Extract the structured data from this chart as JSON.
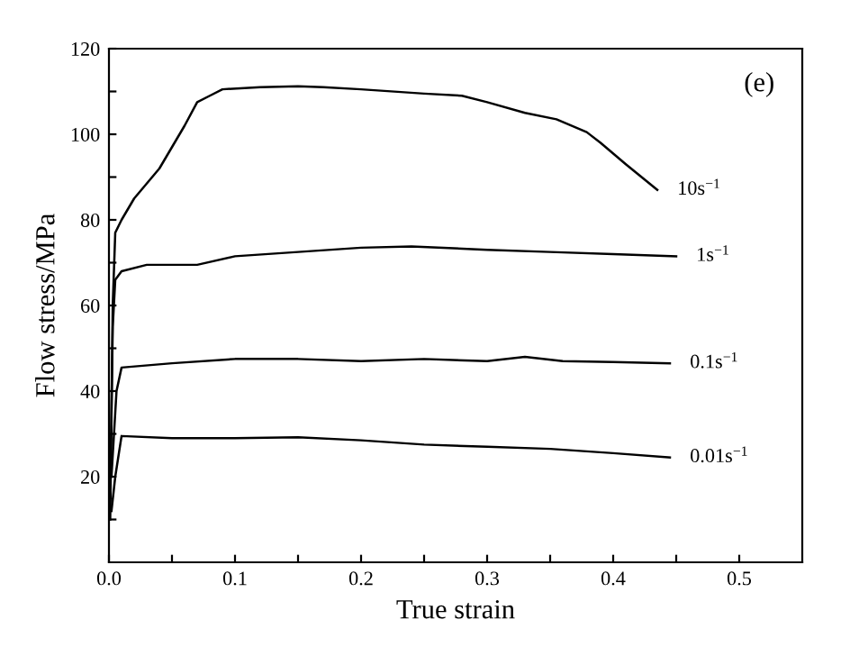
{
  "chart_data": {
    "type": "line",
    "xlabel": "True strain",
    "ylabel": "Flow stress/MPa",
    "annotations": [
      "(e)"
    ],
    "xlim": [
      0,
      0.55
    ],
    "ylim": [
      0,
      120
    ],
    "xticks": [
      {
        "value": 0,
        "label": "0.0"
      },
      {
        "value": 0.05,
        "label": null
      },
      0.1,
      {
        "value": 0.15,
        "label": null
      },
      0.2,
      {
        "value": 0.25,
        "label": null
      },
      0.3,
      {
        "value": 0.35,
        "label": null
      },
      0.4,
      {
        "value": 0.45,
        "label": null
      },
      0.5
    ],
    "yticks": [
      {
        "value": 10,
        "label": null
      },
      20,
      {
        "value": 30,
        "label": null
      },
      40,
      {
        "value": 50,
        "label": null
      },
      60,
      {
        "value": 70,
        "label": null
      },
      80,
      {
        "value": 90,
        "label": null
      },
      100,
      {
        "value": 110,
        "label": null
      },
      120
    ],
    "grid": false,
    "legend": false,
    "marker": "none",
    "line_style": "solid",
    "series": [
      {
        "name": "10s$^{−1}$",
        "color": "#000000",
        "x": [
          0.001,
          0.003,
          0.005,
          0.01,
          0.02,
          0.04,
          0.06,
          0.07,
          0.08,
          0.09,
          0.12,
          0.15,
          0.17,
          0.2,
          0.25,
          0.28,
          0.3,
          0.33,
          0.355,
          0.379,
          0.39,
          0.41,
          0.435
        ],
        "values": [
          10,
          60,
          77,
          80,
          85,
          92,
          102,
          107.5,
          109,
          110.5,
          111,
          111.2,
          111,
          110.5,
          109.5,
          109,
          107.5,
          105,
          103.5,
          100.5,
          98,
          93,
          87
        ]
      },
      {
        "name": "1s$^{−1}$",
        "color": "#000000",
        "x": [
          0.001,
          0.003,
          0.005,
          0.01,
          0.03,
          0.07,
          0.1,
          0.15,
          0.2,
          0.24,
          0.3,
          0.35,
          0.4,
          0.45
        ],
        "values": [
          15,
          55,
          66,
          68,
          69.5,
          69.5,
          71.5,
          72.5,
          73.5,
          73.8,
          73,
          72.5,
          72,
          71.5
        ]
      },
      {
        "name": "0.1s$^{−1}$",
        "color": "#000000",
        "x": [
          0.002,
          0.006,
          0.01,
          0.05,
          0.1,
          0.15,
          0.2,
          0.25,
          0.3,
          0.33,
          0.36,
          0.4,
          0.445
        ],
        "values": [
          20,
          40,
          45.5,
          46.5,
          47.5,
          47.5,
          47,
          47.5,
          47,
          48,
          47,
          46.8,
          46.5
        ]
      },
      {
        "name": "0.01s$^{−1}$",
        "color": "#000000",
        "x": [
          0.002,
          0.005,
          0.01,
          0.05,
          0.1,
          0.15,
          0.2,
          0.25,
          0.3,
          0.35,
          0.4,
          0.445
        ],
        "values": [
          12,
          20,
          29.5,
          29,
          29,
          29.2,
          28.5,
          27.5,
          27,
          26.5,
          25.5,
          24.5
        ]
      }
    ]
  }
}
